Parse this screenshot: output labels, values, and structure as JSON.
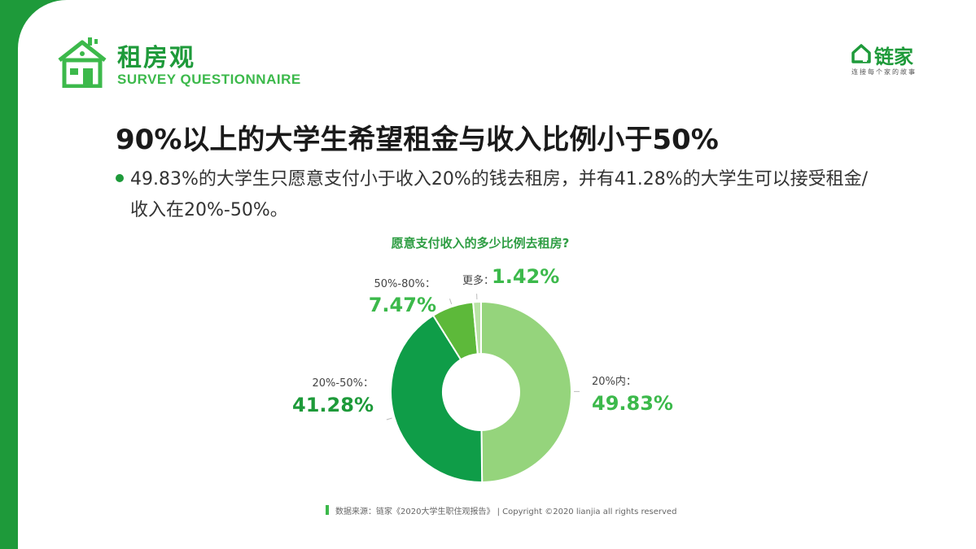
{
  "header": {
    "title": "租房观",
    "subtitle": "SURVEY QUESTIONNAIRE"
  },
  "brand": {
    "name": "链家",
    "tagline": "连接每个家的故事",
    "icon": "house-logo-icon"
  },
  "headline": "90%以上的大学生希望租金与收入比例小于50%",
  "bullet": "49.83%的大学生只愿意支付小于收入20%的钱去租房，并有41.28%的大学生可以接受租金/收入在20%-50%。",
  "footer": {
    "text": "数据来源：链家《2020大学生职住观报告》 | Copyright ©2020 lianjia all rights reserved"
  },
  "colors": {
    "brand_green": "#1e9a3a",
    "light_green": "#95d47c",
    "dark_green": "#0f9d48",
    "mid_green": "#5db93a",
    "pale_green": "#b9e3a5"
  },
  "chart_data": {
    "type": "pie",
    "title": "愿意支付收入的多少比例去租房?",
    "donut": true,
    "slices": [
      {
        "label": "20%内：",
        "value": 49.83,
        "display": "49.83%",
        "color": "#95d47c"
      },
      {
        "label": "20%-50%：",
        "value": 41.28,
        "display": "41.28%",
        "color": "#0f9d48"
      },
      {
        "label": "50%-80%：",
        "value": 7.47,
        "display": "7.47%",
        "color": "#5db93a"
      },
      {
        "label": "更多：",
        "value": 1.42,
        "display": "1.42%",
        "color": "#b9e3a5"
      }
    ]
  }
}
